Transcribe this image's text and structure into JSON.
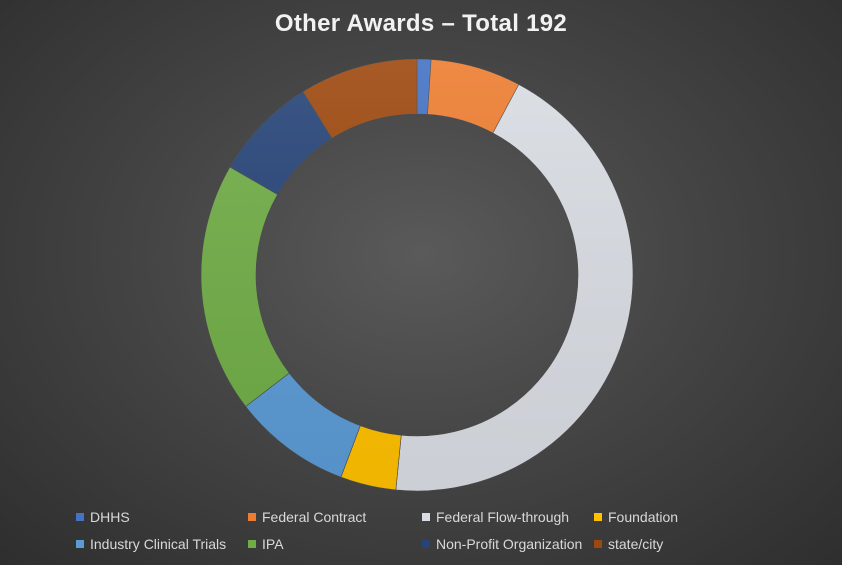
{
  "chart_data": {
    "type": "donut",
    "title": "Other Awards – Total 192",
    "categories": [
      "DHHS",
      "Federal Contract",
      "Federal Flow-through",
      "Foundation",
      "Industry Clinical Trials",
      "IPA",
      "Non-Profit Organization",
      "state/city"
    ],
    "values": [
      2,
      13,
      84,
      8,
      17,
      36,
      15,
      17
    ],
    "colors": [
      "#4472C4",
      "#ED7D31",
      "#D9DDE3",
      "#FFC000",
      "#5B9BD5",
      "#70AD47",
      "#264478",
      "#9E480E"
    ],
    "legend_position": "bottom"
  }
}
